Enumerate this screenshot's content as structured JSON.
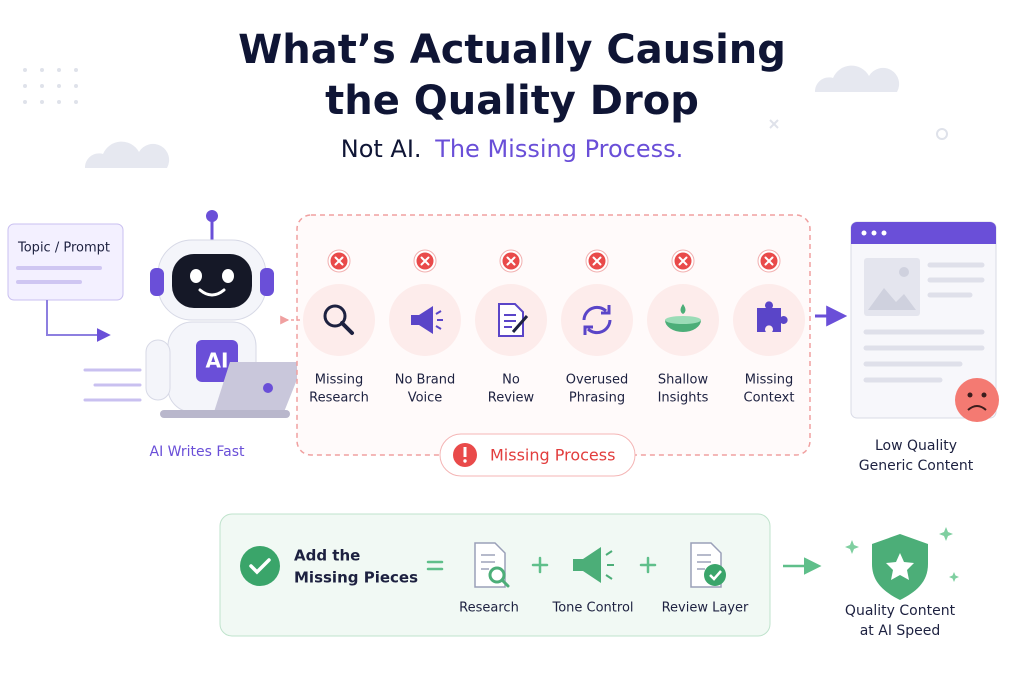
{
  "title": [
    "What’s Actually Causing",
    "the Quality Drop"
  ],
  "subtitle": {
    "plain": "Not AI.",
    "highlight": "The Missing Process."
  },
  "input": {
    "label": "Topic / Prompt"
  },
  "robot": {
    "badge": "AI",
    "caption": "AI Writes Fast"
  },
  "missing": {
    "items": [
      {
        "label": [
          "Missing",
          "Research"
        ]
      },
      {
        "label": [
          "No Brand",
          "Voice"
        ]
      },
      {
        "label": [
          "No",
          "Review"
        ]
      },
      {
        "label": [
          "Overused",
          "Phrasing"
        ]
      },
      {
        "label": [
          "Shallow",
          "Insights"
        ]
      },
      {
        "label": [
          "Missing",
          "Context"
        ]
      }
    ],
    "label": "Missing Process"
  },
  "output": {
    "caption": [
      "Low Quality",
      "Generic Content"
    ]
  },
  "fix": {
    "heading": [
      "Add the",
      "Missing Pieces"
    ],
    "pieces": [
      "Research",
      "Tone Control",
      "Review Layer"
    ]
  },
  "result": {
    "caption": [
      "Quality Content",
      "at AI Speed"
    ]
  }
}
